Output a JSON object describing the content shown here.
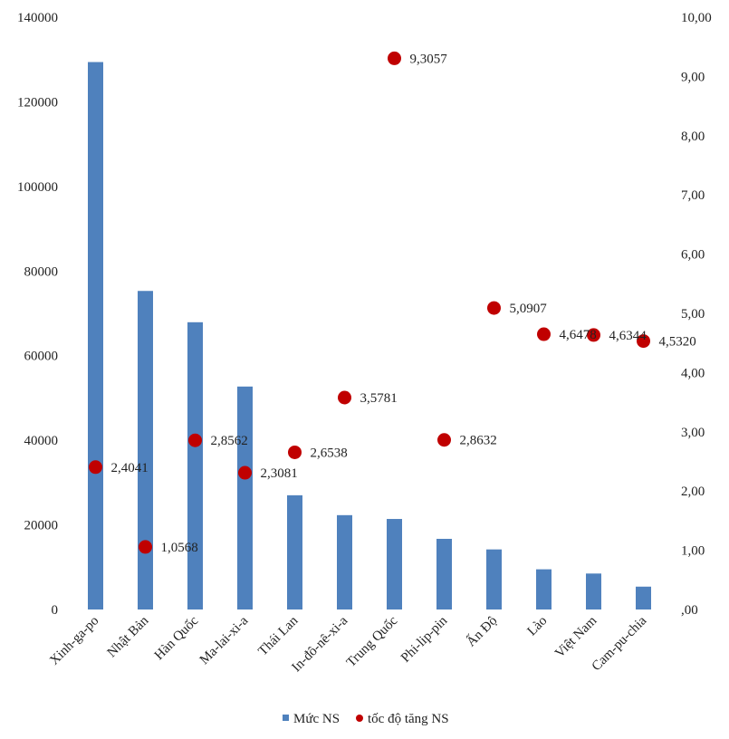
{
  "chart_data": {
    "type": "bar",
    "categories": [
      "Xinh-ga-po",
      "Nhật Bản",
      "Hàn Quốc",
      "Ma-lai-xi-a",
      "Thái Lan",
      "In-đô-nê-xi-a",
      "Trung Quốc",
      "Phi-lip-pin",
      "Ấn Độ",
      "Lào",
      "Việt Nam",
      "Cam-pu-chia"
    ],
    "series": [
      {
        "name": "Mức NS",
        "type": "bar",
        "axis": "left",
        "color": "#4f81bd",
        "values": [
          129400,
          75300,
          67900,
          52700,
          27000,
          22300,
          21400,
          16700,
          14200,
          9500,
          8500,
          5400
        ]
      },
      {
        "name": "tốc độ tăng NS",
        "type": "scatter",
        "axis": "right",
        "color": "#c00000",
        "values": [
          2.4041,
          1.0568,
          2.8562,
          2.3081,
          2.6538,
          3.5781,
          9.3057,
          2.8632,
          5.0907,
          4.6478,
          4.6344,
          4.532
        ],
        "labels": [
          "2,4041",
          "1,0568",
          "2,8562",
          "2,3081",
          "2,6538",
          "3,5781",
          "9,3057",
          "2,8632",
          "5,0907",
          "4,6478",
          "4,6344",
          "4,5320"
        ]
      }
    ],
    "y_left": {
      "min": 0,
      "max": 140000,
      "ticks": [
        0,
        20000,
        40000,
        60000,
        80000,
        100000,
        120000,
        140000
      ],
      "tick_labels": [
        "0",
        "20000",
        "40000",
        "60000",
        "80000",
        "100000",
        "120000",
        "140000"
      ]
    },
    "y_right": {
      "min": 0,
      "max": 10,
      "ticks": [
        0,
        1,
        2,
        3,
        4,
        5,
        6,
        7,
        8,
        9,
        10
      ],
      "tick_labels": [
        ",00",
        "1,00",
        "2,00",
        "3,00",
        "4,00",
        "5,00",
        "6,00",
        "7,00",
        "8,00",
        "9,00",
        "10,00"
      ]
    },
    "grid": false,
    "legend_position": "bottom",
    "title": "",
    "xlabel": "",
    "ylabel": ""
  }
}
